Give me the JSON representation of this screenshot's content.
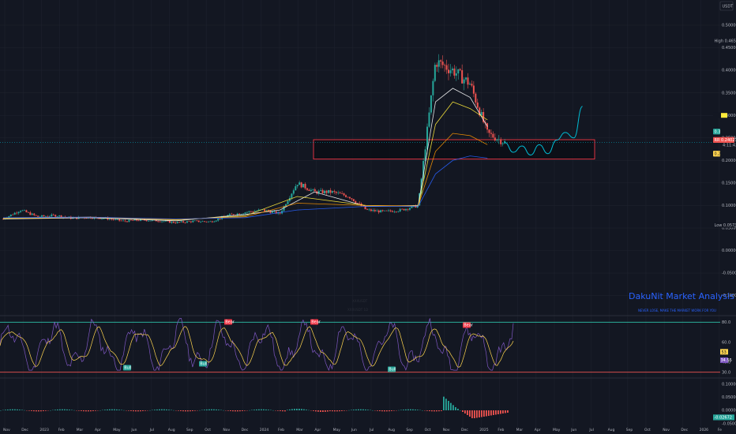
{
  "currency": "USDT",
  "price_tags": {
    "high": {
      "label": "High",
      "value": "0.46560"
    },
    "low": {
      "label": "Low",
      "value": "0.05734"
    },
    "current": {
      "label": "RR",
      "value": "0.24023",
      "countdown": "4:11:42"
    },
    "ema_small": "0.3",
    "ema_gold": "0.2",
    "rsi_tag": "53",
    "rsi_value": "34.55",
    "macd_value": "-0.02672"
  },
  "watermark": {
    "title": "DakuNit Market Analysis",
    "subtitle": "NEVER LOSE, MAKE THE MARKET WORK FOR YOU"
  },
  "pane_notes": [
    "XXXUSDT",
    "XXXUSDT 1D"
  ],
  "colors": {
    "background": "#131722",
    "bull": "#26a69a",
    "bear": "#ef5350",
    "zone": "#f23645",
    "projection": "#00bcd4",
    "rsi": "#7e57c2",
    "rsi_ma": "#ffd54f",
    "ema20": "#ffffff",
    "ema50": "#ffeb3b",
    "ema100": "#ff9800",
    "ema200": "#2962ff",
    "grid": "#1e222d",
    "axis_text": "#b2b5be",
    "label_bull": "#26a69a",
    "label_bear": "#f23645"
  },
  "chart_data": [
    {
      "type": "candlestick",
      "title": "",
      "y_axis_ticks": [
        0.5,
        0.45,
        0.4,
        0.35,
        0.3,
        0.25,
        0.2,
        0.15,
        0.1,
        0.05,
        0.0,
        -0.05,
        -0.1
      ],
      "y_axis_tick_labels": [
        "0.50000",
        "0.45000",
        "0.40000",
        "0.35000",
        "0.30000",
        "0.25000",
        "0.20000",
        "0.15000",
        "0.10000",
        "0.05000",
        "0.00000",
        "-0.05000",
        "-0.10000"
      ],
      "ylim": [
        -0.1,
        0.52
      ],
      "x_axis_labels": [
        "Nov",
        "Dec",
        "2023",
        "Feb",
        "Mar",
        "Apr",
        "May",
        "Jun",
        "Jul",
        "Aug",
        "Sep",
        "Oct",
        "Nov",
        "Dec",
        "2024",
        "Feb",
        "Mar",
        "Apr",
        "May",
        "Jun",
        "Jul",
        "Aug",
        "Sep",
        "Oct",
        "Nov",
        "Dec",
        "2025",
        "Feb",
        "Mar",
        "Apr",
        "May",
        "Jun",
        "Jul",
        "Aug",
        "Sep",
        "Oct",
        "Nov",
        "Dec",
        "2026",
        "Fe"
      ],
      "price_path": [
        [
          0,
          0.07
        ],
        [
          1,
          0.09
        ],
        [
          2,
          0.075
        ],
        [
          3,
          0.078
        ],
        [
          4,
          0.072
        ],
        [
          5,
          0.074
        ],
        [
          6,
          0.071
        ],
        [
          7,
          0.065
        ],
        [
          8,
          0.068
        ],
        [
          9,
          0.066
        ],
        [
          10,
          0.062
        ],
        [
          11,
          0.065
        ],
        [
          12,
          0.064
        ],
        [
          13,
          0.078
        ],
        [
          14,
          0.085
        ],
        [
          15,
          0.09
        ],
        [
          16,
          0.082
        ],
        [
          17,
          0.15
        ],
        [
          18,
          0.13
        ],
        [
          19,
          0.13
        ],
        [
          20,
          0.12
        ],
        [
          21,
          0.09
        ],
        [
          22,
          0.086
        ],
        [
          23,
          0.09
        ],
        [
          24,
          0.1
        ],
        [
          25,
          0.42
        ],
        [
          26,
          0.4
        ],
        [
          27,
          0.37
        ],
        [
          28,
          0.26
        ],
        [
          29,
          0.24
        ]
      ],
      "ema_series": [
        {
          "name": "EMA 20",
          "values": [
            [
              0,
              0.07
            ],
            [
              5,
              0.073
            ],
            [
              10,
              0.066
            ],
            [
              14,
              0.08
            ],
            [
              16,
              0.09
            ],
            [
              18,
              0.13
            ],
            [
              21,
              0.098
            ],
            [
              24,
              0.1
            ],
            [
              25,
              0.33
            ],
            [
              26,
              0.36
            ],
            [
              27,
              0.34
            ],
            [
              28,
              0.275
            ]
          ]
        },
        {
          "name": "EMA 50",
          "values": [
            [
              0,
              0.071
            ],
            [
              5,
              0.074
            ],
            [
              10,
              0.068
            ],
            [
              14,
              0.077
            ],
            [
              17,
              0.12
            ],
            [
              21,
              0.1
            ],
            [
              24,
              0.098
            ],
            [
              25,
              0.28
            ],
            [
              26,
              0.33
            ],
            [
              27,
              0.315
            ],
            [
              28,
              0.29
            ]
          ]
        },
        {
          "name": "EMA 100",
          "values": [
            [
              0,
              0.072
            ],
            [
              5,
              0.074
            ],
            [
              10,
              0.069
            ],
            [
              14,
              0.075
            ],
            [
              17,
              0.105
            ],
            [
              21,
              0.1
            ],
            [
              24,
              0.099
            ],
            [
              25,
              0.22
            ],
            [
              26,
              0.26
            ],
            [
              27,
              0.255
            ],
            [
              28,
              0.235
            ]
          ]
        },
        {
          "name": "EMA 200",
          "values": [
            [
              0,
              0.073
            ],
            [
              5,
              0.074
            ],
            [
              10,
              0.07
            ],
            [
              14,
              0.073
            ],
            [
              17,
              0.09
            ],
            [
              21,
              0.098
            ],
            [
              24,
              0.098
            ],
            [
              25,
              0.17
            ],
            [
              26,
              0.2
            ],
            [
              27,
              0.21
            ],
            [
              28,
              0.205
            ]
          ]
        }
      ],
      "zones": [
        {
          "type": "support",
          "from": 0.203,
          "to": 0.246,
          "start": "Mar 2024",
          "end": "Jul 2025"
        }
      ],
      "projection": [
        [
          29,
          0.24
        ],
        [
          29.5,
          0.218
        ],
        [
          30,
          0.232
        ],
        [
          30.5,
          0.212
        ],
        [
          31,
          0.235
        ],
        [
          31.5,
          0.215
        ],
        [
          32,
          0.245
        ],
        [
          32.5,
          0.262
        ],
        [
          33,
          0.25
        ],
        [
          33.5,
          0.32
        ]
      ]
    },
    {
      "type": "line",
      "title": "",
      "y_axis_tick_labels": [
        "80.0",
        "60.0",
        "40.0",
        "30.0"
      ],
      "ylim": [
        25,
        85
      ],
      "levels": [
        80,
        30
      ],
      "signals": [
        {
          "label": "Bull",
          "kind": "bull"
        },
        {
          "label": "Bull",
          "kind": "bull"
        },
        {
          "label": "Bear",
          "kind": "bear"
        },
        {
          "label": "Bear",
          "kind": "bear"
        },
        {
          "label": "Bull",
          "kind": "bull"
        },
        {
          "label": "Bear",
          "kind": "bear"
        }
      ]
    },
    {
      "type": "bar",
      "title": "",
      "y_axis_tick_labels": [
        "0.10000",
        "0.05000",
        "0.00000",
        "-0.05000"
      ],
      "ylim": [
        -0.06,
        0.12
      ]
    }
  ]
}
